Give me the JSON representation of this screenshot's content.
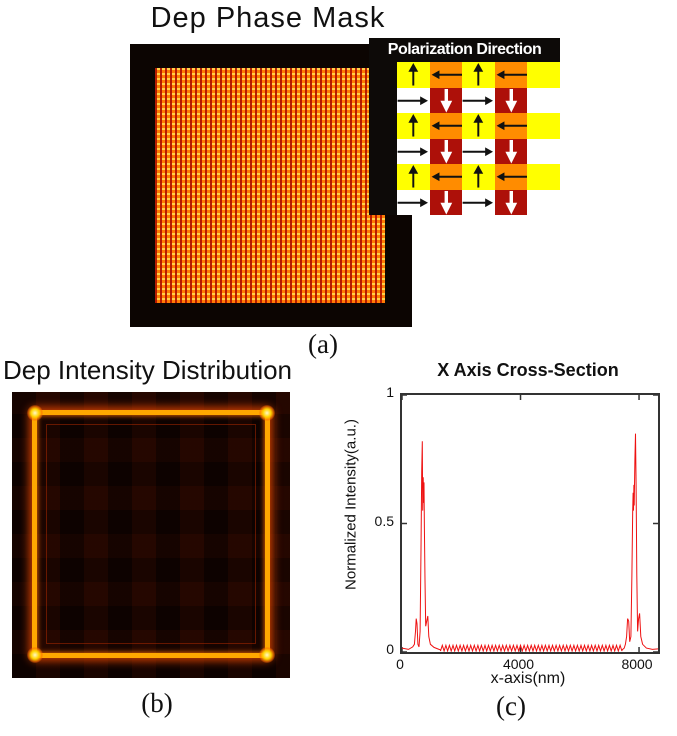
{
  "panels": {
    "a": {
      "title": "Dep Phase Mask",
      "label": "(a)",
      "inset": {
        "title": "Polarization Direction",
        "rows": 6,
        "cols": 5,
        "bg_row_colors": [
          "#ffff00",
          "#ffffff"
        ],
        "stripe_row_colors": [
          "#ff8c00",
          "#ad1009"
        ],
        "stripe_columns": [
          1,
          3
        ],
        "arrow_columns": [
          0,
          1,
          2,
          3
        ],
        "arrows": {
          "bg_yellow": "up",
          "bg_white": "right",
          "stripe_yellow": "left",
          "stripe_white": "down"
        },
        "arrow_colors": {
          "black": "#111111",
          "white": "#ffffff"
        }
      }
    },
    "b": {
      "title": "Dep Intensity Distribution",
      "label": "(b)"
    },
    "c": {
      "label": "(c)"
    }
  },
  "chart_data": {
    "type": "line",
    "title": "X Axis Cross-Section",
    "xlabel": "x-axis(nm)",
    "ylabel": "Normalized Intensity(a.u.)",
    "xlim": [
      0,
      8640
    ],
    "ylim": [
      0,
      1
    ],
    "xticks": [
      0,
      4000,
      8000
    ],
    "yticks": [
      0,
      0.5,
      1
    ],
    "grid": false,
    "legend": false,
    "line_color": "#ee1111",
    "series": [
      {
        "name": "normalized intensity",
        "segments": [
          {
            "type": "points",
            "points": [
              [
                0,
                0.015
              ],
              [
                220,
                0.01
              ],
              [
                360,
                0.02
              ],
              [
                420,
                0.03
              ],
              [
                455,
                0.08
              ],
              [
                480,
                0.13
              ],
              [
                505,
                0.11
              ],
              [
                535,
                0.03
              ],
              [
                575,
                0.02
              ],
              [
                610,
                0.08
              ],
              [
                640,
                0.4
              ],
              [
                665,
                0.7
              ],
              [
                685,
                0.82
              ],
              [
                700,
                0.55
              ],
              [
                715,
                0.68
              ],
              [
                728,
                0.58
              ],
              [
                742,
                0.66
              ],
              [
                755,
                0.48
              ],
              [
                775,
                0.28
              ],
              [
                800,
                0.1
              ],
              [
                835,
                0.12
              ],
              [
                870,
                0.14
              ],
              [
                905,
                0.06
              ],
              [
                960,
                0.03
              ],
              [
                1080,
                0.018
              ],
              [
                1250,
                0.01
              ],
              [
                1300,
                0.008
              ]
            ]
          },
          {
            "type": "zigzag_baseline",
            "start": 1300,
            "end": 7430,
            "period": 120,
            "base": 0.004,
            "amplitude": 0.022
          },
          {
            "type": "points",
            "points": [
              [
                7430,
                0.008
              ],
              [
                7500,
                0.015
              ],
              [
                7540,
                0.03
              ],
              [
                7580,
                0.06
              ],
              [
                7615,
                0.13
              ],
              [
                7650,
                0.12
              ],
              [
                7685,
                0.04
              ],
              [
                7725,
                0.06
              ],
              [
                7760,
                0.3
              ],
              [
                7785,
                0.55
              ],
              [
                7800,
                0.62
              ],
              [
                7812,
                0.55
              ],
              [
                7825,
                0.65
              ],
              [
                7838,
                0.57
              ],
              [
                7862,
                0.75
              ],
              [
                7880,
                0.85
              ],
              [
                7900,
                0.65
              ],
              [
                7925,
                0.3
              ],
              [
                7950,
                0.08
              ],
              [
                7985,
                0.13
              ],
              [
                8020,
                0.15
              ],
              [
                8060,
                0.06
              ],
              [
                8120,
                0.03
              ],
              [
                8250,
                0.015
              ],
              [
                8450,
                0.01
              ],
              [
                8640,
                0.012
              ]
            ]
          }
        ]
      }
    ]
  }
}
